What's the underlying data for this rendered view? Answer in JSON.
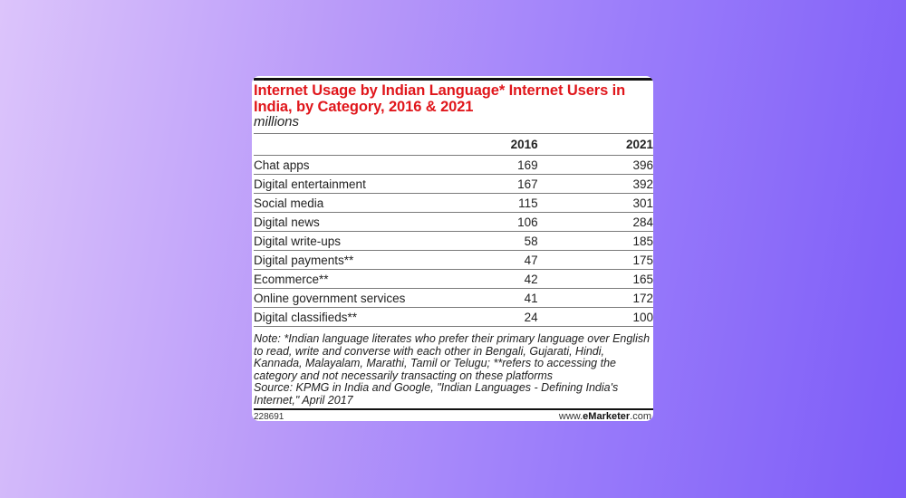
{
  "chart_data": {
    "type": "table",
    "title": "Internet Usage by Indian Language* Internet Users in India, by Category, 2016 & 2021",
    "subtitle": "millions",
    "columns": [
      "2016",
      "2021"
    ],
    "rows": [
      {
        "label": "Chat apps",
        "values": [
          "169",
          "396"
        ]
      },
      {
        "label": "Digital entertainment",
        "values": [
          "167",
          "392"
        ]
      },
      {
        "label": "Social media",
        "values": [
          "115",
          "301"
        ]
      },
      {
        "label": "Digital news",
        "values": [
          "106",
          "284"
        ]
      },
      {
        "label": "Digital write-ups",
        "values": [
          "58",
          "185"
        ]
      },
      {
        "label": "Digital payments**",
        "values": [
          "47",
          "175"
        ]
      },
      {
        "label": "Ecommerce**",
        "values": [
          "42",
          "165"
        ]
      },
      {
        "label": "Online government services",
        "values": [
          "41",
          "172"
        ]
      },
      {
        "label": "Digital classifieds**",
        "values": [
          "24",
          "100"
        ]
      }
    ]
  },
  "note": "Note: *Indian language literates who prefer their primary language over English to read, write and converse with each other in Bengali, Gujarati, Hindi, Kannada, Malayalam, Marathi, Tamil or Telugu; **refers to accessing the category and not necessarily transacting on these platforms",
  "source": "Source: KPMG in India and Google, \"Indian Languages - Defining India's Internet,\" April 2017",
  "footer": {
    "chart_id": "228691",
    "brand_prefix": "www.",
    "brand_name": "eMarketer",
    "brand_suffix": ".com"
  },
  "colors": {
    "title": "#e0161b",
    "background_start": "#dcc4fb",
    "background_end": "#7d5cf8"
  }
}
